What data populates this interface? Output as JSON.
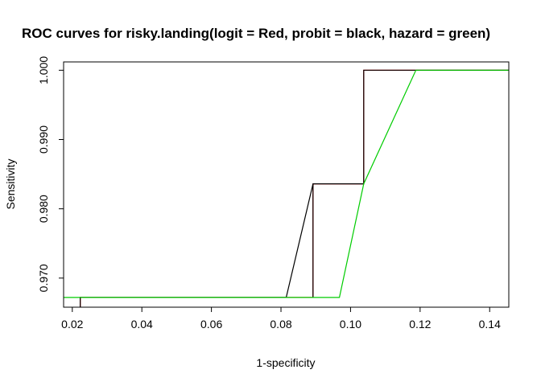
{
  "chart_data": {
    "type": "line",
    "title": "ROC curves for risky.landing(logit = Red, probit = black, hazard = green)",
    "xlabel": "1-specificity",
    "ylabel": "Sensitivity",
    "xlim": [
      0.0175,
      0.1455
    ],
    "ylim": [
      0.9658,
      1.0012
    ],
    "xticks": [
      0.02,
      0.04,
      0.06,
      0.08,
      0.1,
      0.12,
      0.14
    ],
    "xtick_labels": [
      "0.02",
      "0.04",
      "0.06",
      "0.08",
      "0.10",
      "0.12",
      "0.14"
    ],
    "yticks": [
      0.97,
      0.98,
      0.99,
      1.0
    ],
    "ytick_labels": [
      "0.970",
      "0.980",
      "0.990",
      "1.000"
    ],
    "grid": false,
    "legend": "none",
    "series": [
      {
        "name": "logit",
        "color": "#ff0000",
        "x": [
          0.0223,
          0.0223,
          0.0892,
          0.0892,
          0.1038,
          0.1038,
          0.1455
        ],
        "y": [
          0.9658,
          0.9672,
          0.9672,
          0.9836,
          0.9836,
          1.0,
          1.0
        ]
      },
      {
        "name": "probit",
        "color": "#000000",
        "x": [
          0.0223,
          0.0223,
          0.0815,
          0.0892,
          0.0892,
          0.0892,
          0.1038,
          0.1038,
          0.1455
        ],
        "y": [
          0.9658,
          0.9672,
          0.9672,
          0.9836,
          0.9672,
          0.9836,
          0.9836,
          1.0,
          1.0
        ]
      },
      {
        "name": "hazard",
        "color": "#00cc00",
        "x": [
          0.0175,
          0.0968,
          0.1038,
          0.1188,
          0.1455
        ],
        "y": [
          0.9672,
          0.9672,
          0.9836,
          1.0,
          1.0
        ]
      }
    ]
  }
}
